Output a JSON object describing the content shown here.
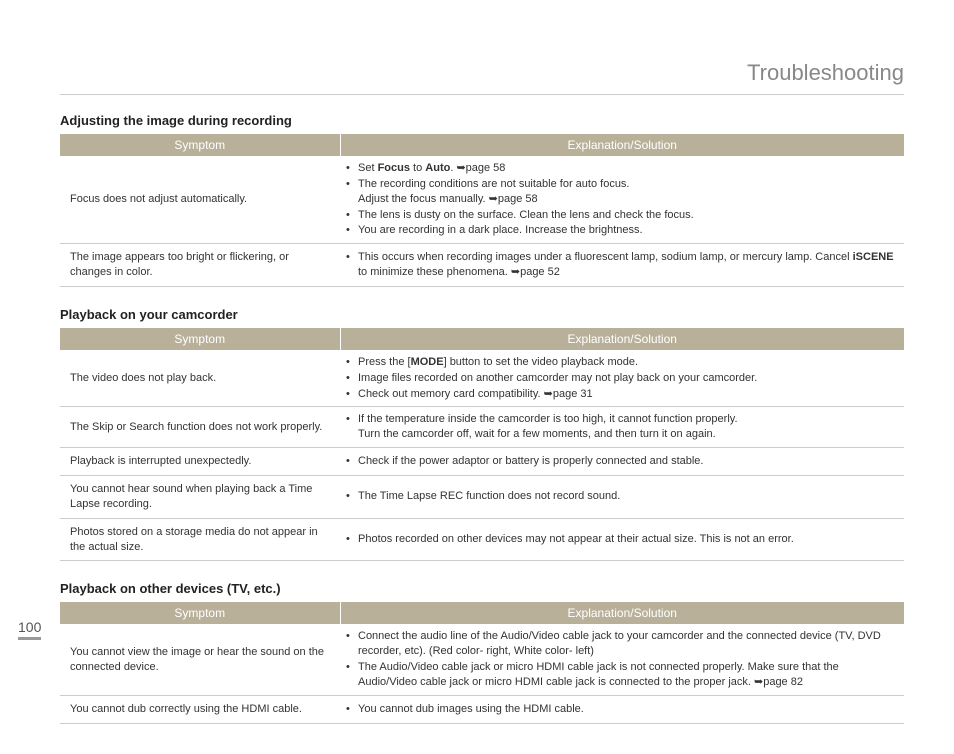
{
  "page_title": "Troubleshooting",
  "page_number": "100",
  "colors": {
    "header_bg": "#b9b09a",
    "header_text": "#ffffff",
    "title_text": "#888888",
    "body_text": "#333333",
    "border": "#cccccc"
  },
  "headers": {
    "symptom": "Symptom",
    "explanation": "Explanation/Solution"
  },
  "sections": [
    {
      "title": "Adjusting the image during recording",
      "rows": [
        {
          "symptom": "Focus does not adjust automatically.",
          "bullets": [
            [
              {
                "t": "Set "
              },
              {
                "t": "Focus",
                "b": true
              },
              {
                "t": " to "
              },
              {
                "t": "Auto",
                "b": true
              },
              {
                "t": ". ➥page 58"
              }
            ],
            [
              {
                "t": "The recording conditions are not suitable for auto focus."
              },
              {
                "br": true
              },
              {
                "t": "Adjust the focus manually. ➥page 58"
              }
            ],
            [
              {
                "t": "The lens is dusty on the surface. Clean the lens and check the focus."
              }
            ],
            [
              {
                "t": "You are recording in a dark place. Increase the brightness."
              }
            ]
          ]
        },
        {
          "symptom": "The image appears too bright or flickering, or changes in color.",
          "bullets": [
            [
              {
                "t": "This occurs when recording images under a fluorescent lamp, sodium lamp, or mercury lamp. Cancel "
              },
              {
                "t": "iSCENE",
                "b": true
              },
              {
                "t": " to minimize these phenomena. ➥page 52"
              }
            ]
          ]
        }
      ]
    },
    {
      "title": "Playback on your camcorder",
      "rows": [
        {
          "symptom": "The video does not play back.",
          "bullets": [
            [
              {
                "t": "Press the ["
              },
              {
                "t": "MODE",
                "b": true
              },
              {
                "t": "] button to set the video playback mode."
              }
            ],
            [
              {
                "t": "Image files recorded on another camcorder may not play back on your camcorder."
              }
            ],
            [
              {
                "t": "Check out memory card compatibility. ➥page 31"
              }
            ]
          ]
        },
        {
          "symptom": "The Skip or Search function does not work properly.",
          "bullets": [
            [
              {
                "t": "If the temperature inside the camcorder is too high, it cannot function properly."
              },
              {
                "br": true
              },
              {
                "t": "Turn the camcorder off, wait for a few moments, and then turn it on again."
              }
            ]
          ]
        },
        {
          "symptom": "Playback is interrupted unexpectedly.",
          "bullets": [
            [
              {
                "t": "Check if the power adaptor or battery is properly connected and stable."
              }
            ]
          ]
        },
        {
          "symptom": "You cannot hear sound when playing back a Time Lapse recording.",
          "bullets": [
            [
              {
                "t": "The Time Lapse REC function does not record sound."
              }
            ]
          ]
        },
        {
          "symptom": "Photos stored on a storage media do not appear in the actual size.",
          "bullets": [
            [
              {
                "t": "Photos recorded on other devices may not appear at their actual size. This is not an error."
              }
            ]
          ]
        }
      ]
    },
    {
      "title": "Playback on other devices (TV, etc.)",
      "rows": [
        {
          "symptom": "You cannot view the image or hear the sound on the connected device.",
          "bullets": [
            [
              {
                "t": "Connect the audio line of the Audio/Video cable jack to your camcorder and the connected device (TV, DVD recorder, etc). (Red color- right, White color- left)"
              }
            ],
            [
              {
                "t": "The Audio/Video cable jack or micro HDMI cable jack is not connected properly. Make sure that the Audio/Video cable jack or micro HDMI cable jack is connected to the proper jack. ➥page 82"
              }
            ]
          ]
        },
        {
          "symptom": "You cannot dub correctly using the HDMI cable.",
          "bullets": [
            [
              {
                "t": "You cannot dub images using the HDMI cable."
              }
            ]
          ]
        }
      ]
    }
  ]
}
